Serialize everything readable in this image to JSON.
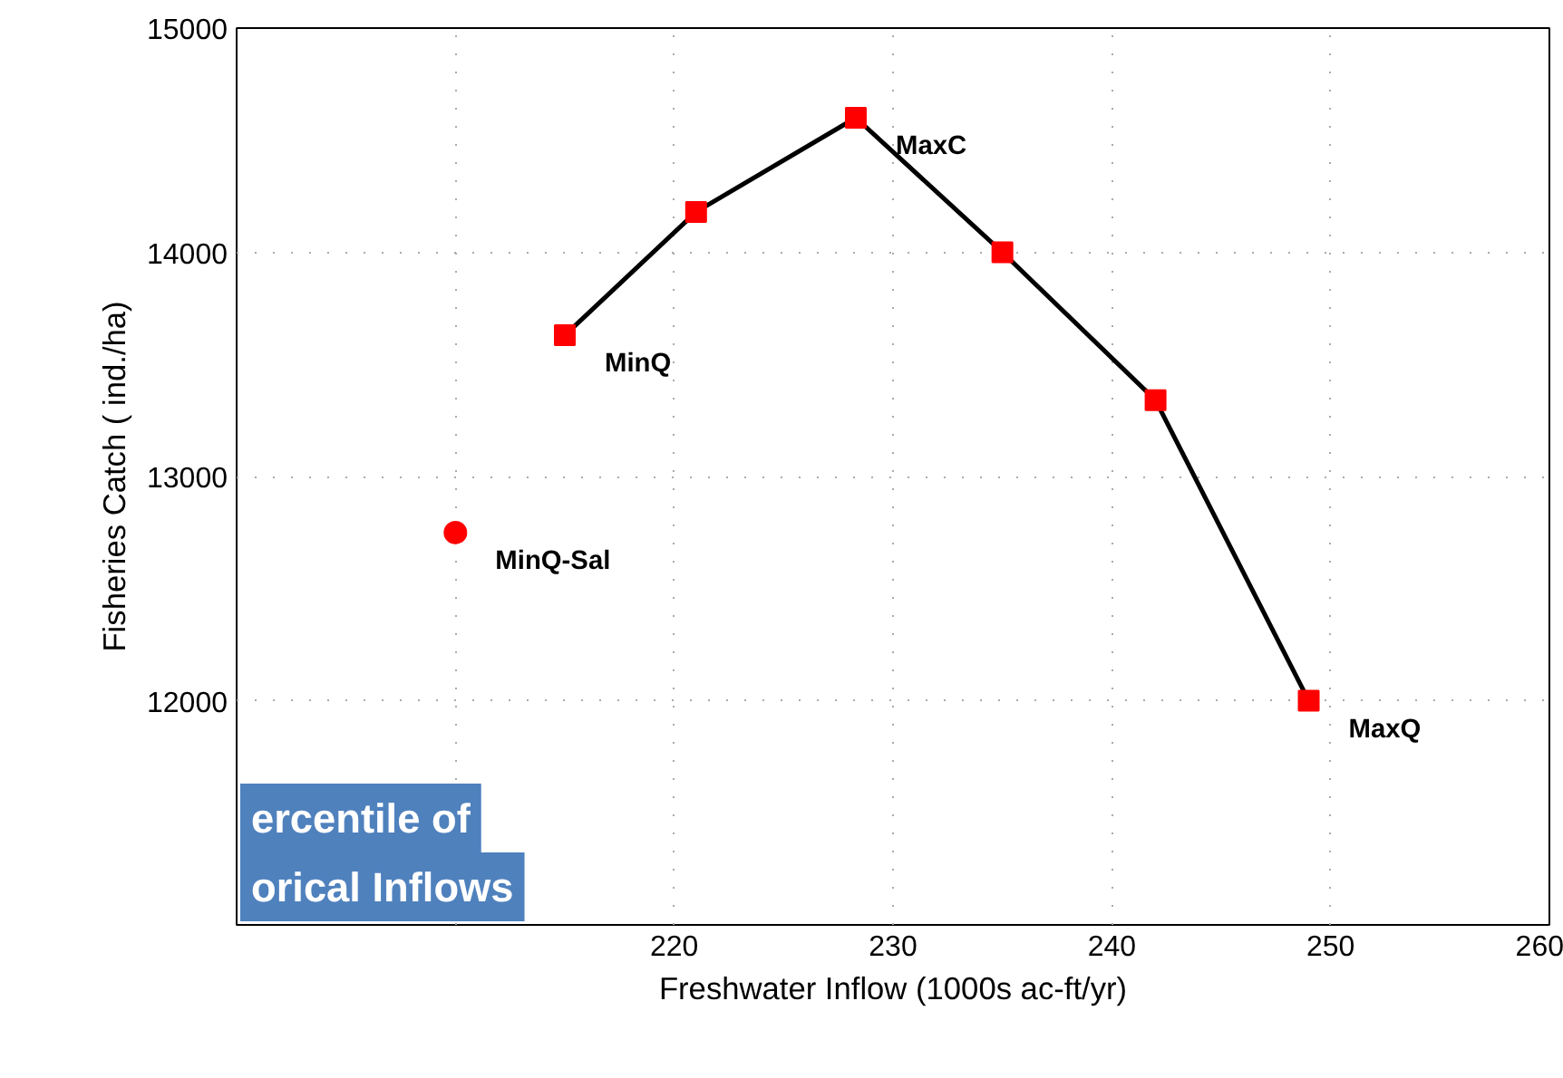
{
  "chart_data": {
    "type": "line",
    "xlabel": "Freshwater Inflow (1000s ac-ft/yr)",
    "ylabel": "Fisheries Catch ( ind./ha)",
    "xlim": [
      200,
      260
    ],
    "ylim": [
      11000,
      15000
    ],
    "xticks": [
      {
        "value": 200,
        "label": null
      },
      {
        "value": 210,
        "label": null
      },
      220,
      230,
      240,
      250,
      260
    ],
    "yticks": [
      {
        "value": 11000,
        "label": null
      },
      12000,
      13000,
      14000,
      15000
    ],
    "grid": true,
    "series": [
      {
        "color": "#000000",
        "marker": "square",
        "colors": [
          "#ff0000",
          "#ff0000",
          "#ff0000",
          "#ff0000",
          "#ff0000",
          "#ff0000"
        ],
        "x": [
          215,
          221,
          228.3,
          235,
          242,
          249
        ],
        "values": [
          13630,
          14180,
          14600,
          14000,
          13340,
          12000
        ]
      },
      {
        "type": "scatter",
        "color": "#ff0000",
        "marker": "circle",
        "x": [
          210
        ],
        "values": [
          12750
        ]
      }
    ],
    "annotations": [
      {
        "text": "MinQ",
        "x": 215,
        "y": 13630
      },
      {
        "text": "MaxC",
        "x": 228.3,
        "y": 14600
      },
      {
        "text": "MaxQ",
        "x": 249,
        "y": 12000
      },
      {
        "text": "MinQ-Sal",
        "x": 210,
        "y": 12750
      },
      "ercentile of",
      "orical Inflows"
    ]
  }
}
